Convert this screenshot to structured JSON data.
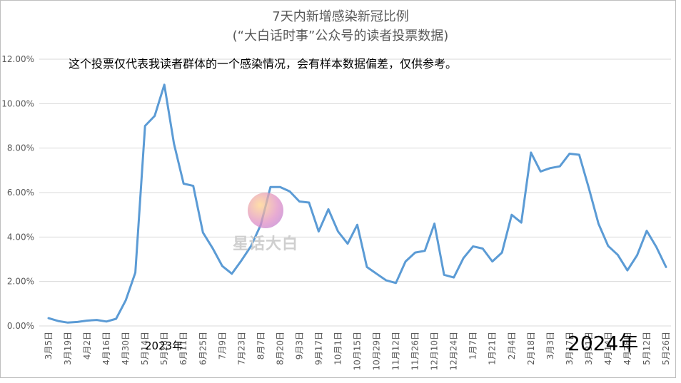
{
  "chart_data": {
    "type": "line",
    "title": "7天内新增感染新冠比例",
    "subtitle": "(“大白话时事”公众号的读者投票数据)",
    "note": "这个投票仅代表我读者群体的一个感染情况，会有样本数据偏差，仅供参考。",
    "annotations": {
      "year_2023": "2023年",
      "year_2024": "2024年"
    },
    "watermark": "星话大白",
    "ylim": [
      0,
      12
    ],
    "y_ticks": [
      "0.00%",
      "2.00%",
      "4.00%",
      "6.00%",
      "8.00%",
      "10.00%",
      "12.00%"
    ],
    "x_tick_labels": [
      "3月5日",
      "3月19日",
      "4月2日",
      "4月16日",
      "4月30日",
      "5月14日",
      "5月28日",
      "6月11日",
      "6月25日",
      "7月9日",
      "7月23日",
      "8月7日",
      "8月20日",
      "9月3日",
      "9月17日",
      "10月1日",
      "10月15日",
      "10月29日",
      "11月12日",
      "11月26日",
      "12月10日",
      "12月24日",
      "1月7日",
      "1月21日",
      "2月4日",
      "2月18日",
      "3月3日",
      "3月17日",
      "3月31日",
      "4月14日",
      "4月28日",
      "5月12日",
      "5月26日"
    ],
    "line_color": "#5b9bd5",
    "grid": true,
    "series": [
      {
        "values": [
          0.35,
          0.22,
          0.15,
          0.18,
          0.24,
          0.27,
          0.2,
          0.32,
          1.15,
          2.4,
          9.0,
          9.45,
          10.85,
          8.2,
          6.4,
          6.3,
          4.2,
          3.5,
          2.7,
          2.35,
          2.95,
          3.6,
          4.55,
          6.25,
          6.25,
          6.05,
          5.6,
          5.55,
          4.25,
          5.25,
          4.25,
          3.7,
          4.55,
          2.65,
          2.35,
          2.05,
          1.93,
          2.9,
          3.3,
          3.38,
          4.6,
          2.3,
          2.18,
          3.05,
          3.58,
          3.48,
          2.9,
          3.3,
          5.0,
          4.65,
          7.8,
          6.95,
          7.1,
          7.18,
          7.75,
          7.7,
          6.2,
          4.6,
          3.6,
          3.2,
          2.5,
          3.18,
          4.28,
          3.55,
          2.65
        ]
      }
    ]
  }
}
